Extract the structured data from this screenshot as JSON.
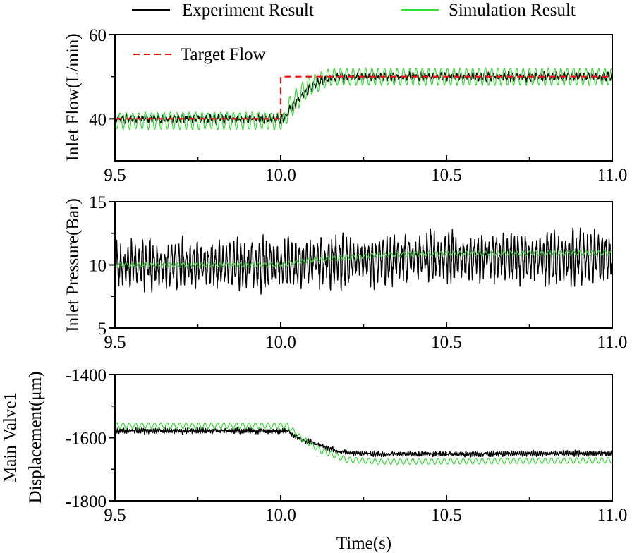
{
  "legend": {
    "items": [
      {
        "label": "Experiment Result",
        "color": "#000000",
        "style": "solid"
      },
      {
        "label": "Simulation Result",
        "color": "#33dd33",
        "style": "solid"
      }
    ],
    "panel_legend": {
      "label": "Target Flow",
      "color": "#ee1111",
      "style": "dashed"
    }
  },
  "chart_data": [
    {
      "type": "line",
      "id": "inlet-flow",
      "ylabel": "Inlet Flow(L/min)",
      "xlabel": "",
      "xlim": [
        9.5,
        11.0
      ],
      "ylim": [
        30,
        60
      ],
      "xticks": [
        9.5,
        10.0,
        10.5,
        11.0
      ],
      "xtick_labels": [
        "9.5",
        "10.0",
        "10.5",
        "11.0"
      ],
      "yticks": [
        40,
        60
      ],
      "ytick_labels": [
        "40",
        "60"
      ],
      "y_minor_ticks": [
        50
      ],
      "x_minor_ticks": [
        9.75,
        10.25,
        10.75
      ],
      "series": [
        {
          "name": "Target Flow",
          "style": "dashed",
          "color": "#ee1111",
          "points": [
            [
              9.5,
              40
            ],
            [
              10.0,
              40
            ],
            [
              10.0,
              50
            ],
            [
              11.0,
              50
            ]
          ],
          "osc_amp": 0,
          "noise": 0
        },
        {
          "name": "Experiment Result",
          "color": "#000000",
          "points": [
            [
              9.5,
              40
            ],
            [
              10.01,
              40
            ],
            [
              10.03,
              42.5
            ],
            [
              10.07,
              46
            ],
            [
              10.12,
              49
            ],
            [
              10.18,
              50
            ],
            [
              11.0,
              50
            ]
          ],
          "osc_amp": 0.7,
          "osc_period": 0.012,
          "noise": 0.6
        },
        {
          "name": "Simulation Result",
          "color": "#33dd33",
          "points": [
            [
              9.5,
              39.5
            ],
            [
              10.01,
              39.5
            ],
            [
              10.03,
              43
            ],
            [
              10.08,
              47.5
            ],
            [
              10.15,
              50
            ],
            [
              11.0,
              50
            ]
          ],
          "osc_amp": 2.0,
          "osc_period": 0.019,
          "noise": 0.2,
          "overshoot_at": 10.02
        }
      ]
    },
    {
      "type": "line",
      "id": "inlet-pressure",
      "ylabel": "Inlet Pressure(Bar)",
      "xlabel": "",
      "xlim": [
        9.5,
        11.0
      ],
      "ylim": [
        5,
        15
      ],
      "xticks": [
        9.5,
        10.0,
        10.5,
        11.0
      ],
      "xtick_labels": [
        "9.5",
        "10.0",
        "10.5",
        "11.0"
      ],
      "yticks": [
        5,
        10,
        15
      ],
      "ytick_labels": [
        "5",
        "10",
        "15"
      ],
      "y_minor_ticks": [
        7.5,
        12.5
      ],
      "x_minor_ticks": [
        9.75,
        10.25,
        10.75
      ],
      "series": [
        {
          "name": "Experiment Result",
          "color": "#000000",
          "points": [
            [
              9.5,
              10
            ],
            [
              10.0,
              10.0
            ],
            [
              10.2,
              10.4
            ],
            [
              10.5,
              10.6
            ],
            [
              11.0,
              10.6
            ]
          ],
          "osc_amp": 1.4,
          "osc_period": 0.011,
          "noise": 0.9
        },
        {
          "name": "Simulation Result",
          "color": "#33dd33",
          "points": [
            [
              9.5,
              10.0
            ],
            [
              10.0,
              10.0
            ],
            [
              10.1,
              10.4
            ],
            [
              10.3,
              10.8
            ],
            [
              10.5,
              10.9
            ],
            [
              11.0,
              10.95
            ]
          ],
          "osc_amp": 0.18,
          "osc_period": 0.019,
          "noise": 0
        }
      ]
    },
    {
      "type": "line",
      "id": "main-valve-displacement",
      "ylabel": "Main Valve1 Displacement(μm)",
      "xlabel": "Time(s)",
      "xlim": [
        9.5,
        11.0
      ],
      "ylim": [
        -1800,
        -1400
      ],
      "xticks": [
        9.5,
        10.0,
        10.5,
        11.0
      ],
      "xtick_labels": [
        "9.5",
        "10.0",
        "10.5",
        "11.0"
      ],
      "yticks": [
        -1800,
        -1600,
        -1400
      ],
      "ytick_labels": [
        "-1800",
        "-1600",
        "-1400"
      ],
      "y_minor_ticks": [
        -1700,
        -1500
      ],
      "x_minor_ticks": [
        9.75,
        10.25,
        10.75
      ],
      "series": [
        {
          "name": "Experiment Result",
          "color": "#000000",
          "points": [
            [
              9.5,
              -1578
            ],
            [
              10.02,
              -1578
            ],
            [
              10.06,
              -1605
            ],
            [
              10.12,
              -1625
            ],
            [
              10.18,
              -1645
            ],
            [
              10.3,
              -1652
            ],
            [
              11.0,
              -1650
            ]
          ],
          "osc_amp": 5,
          "osc_period": 0.006,
          "noise": 6
        },
        {
          "name": "Simulation Result",
          "color": "#33dd33",
          "points": [
            [
              9.5,
              -1562
            ],
            [
              10.02,
              -1562
            ],
            [
              10.06,
              -1600
            ],
            [
              10.12,
              -1640
            ],
            [
              10.2,
              -1670
            ],
            [
              10.3,
              -1676
            ],
            [
              11.0,
              -1672
            ]
          ],
          "osc_amp": 9,
          "osc_period": 0.019,
          "noise": 0
        }
      ]
    }
  ]
}
